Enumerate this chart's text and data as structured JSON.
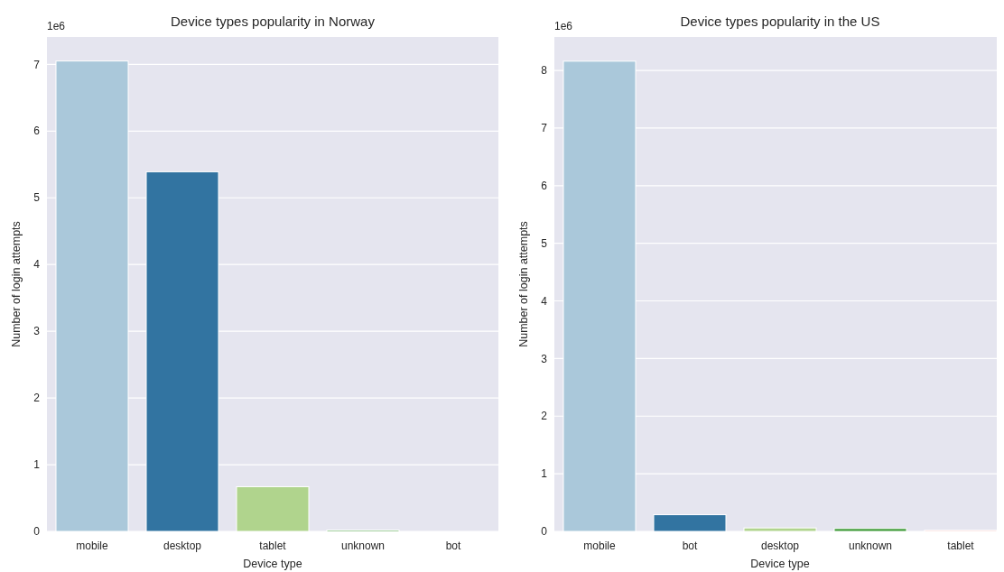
{
  "chart_data": [
    {
      "type": "bar",
      "title": "Device types popularity in Norway",
      "xlabel": "Device type",
      "ylabel": "Number of login attempts",
      "annotations": [
        "1e6"
      ],
      "categories": [
        "mobile",
        "desktop",
        "tablet",
        "unknown",
        "bot"
      ],
      "values": [
        7.05,
        5.39,
        0.67,
        0.02,
        0
      ],
      "colors": [
        "#aac8da",
        "#3274a1",
        "#b0d48d",
        "#3d9a36",
        "#f3b4b0"
      ],
      "ylim": [
        0,
        7.41
      ],
      "yticks": [
        0,
        1,
        2,
        3,
        4,
        5,
        6,
        7
      ],
      "grid": "y"
    },
    {
      "type": "bar",
      "title": "Device types popularity in the US",
      "xlabel": "Device type",
      "ylabel": "Number of login attempts",
      "annotations": [
        "1e6"
      ],
      "categories": [
        "mobile",
        "bot",
        "desktop",
        "unknown",
        "tablet"
      ],
      "values": [
        8.16,
        0.29,
        0.06,
        0.05,
        0.02
      ],
      "colors": [
        "#aac8da",
        "#3274a1",
        "#b0d48d",
        "#3d9a36",
        "#f3b4b0"
      ],
      "ylim": [
        0,
        8.58
      ],
      "yticks": [
        0,
        1,
        2,
        3,
        4,
        5,
        6,
        7,
        8
      ],
      "grid": "y"
    }
  ]
}
